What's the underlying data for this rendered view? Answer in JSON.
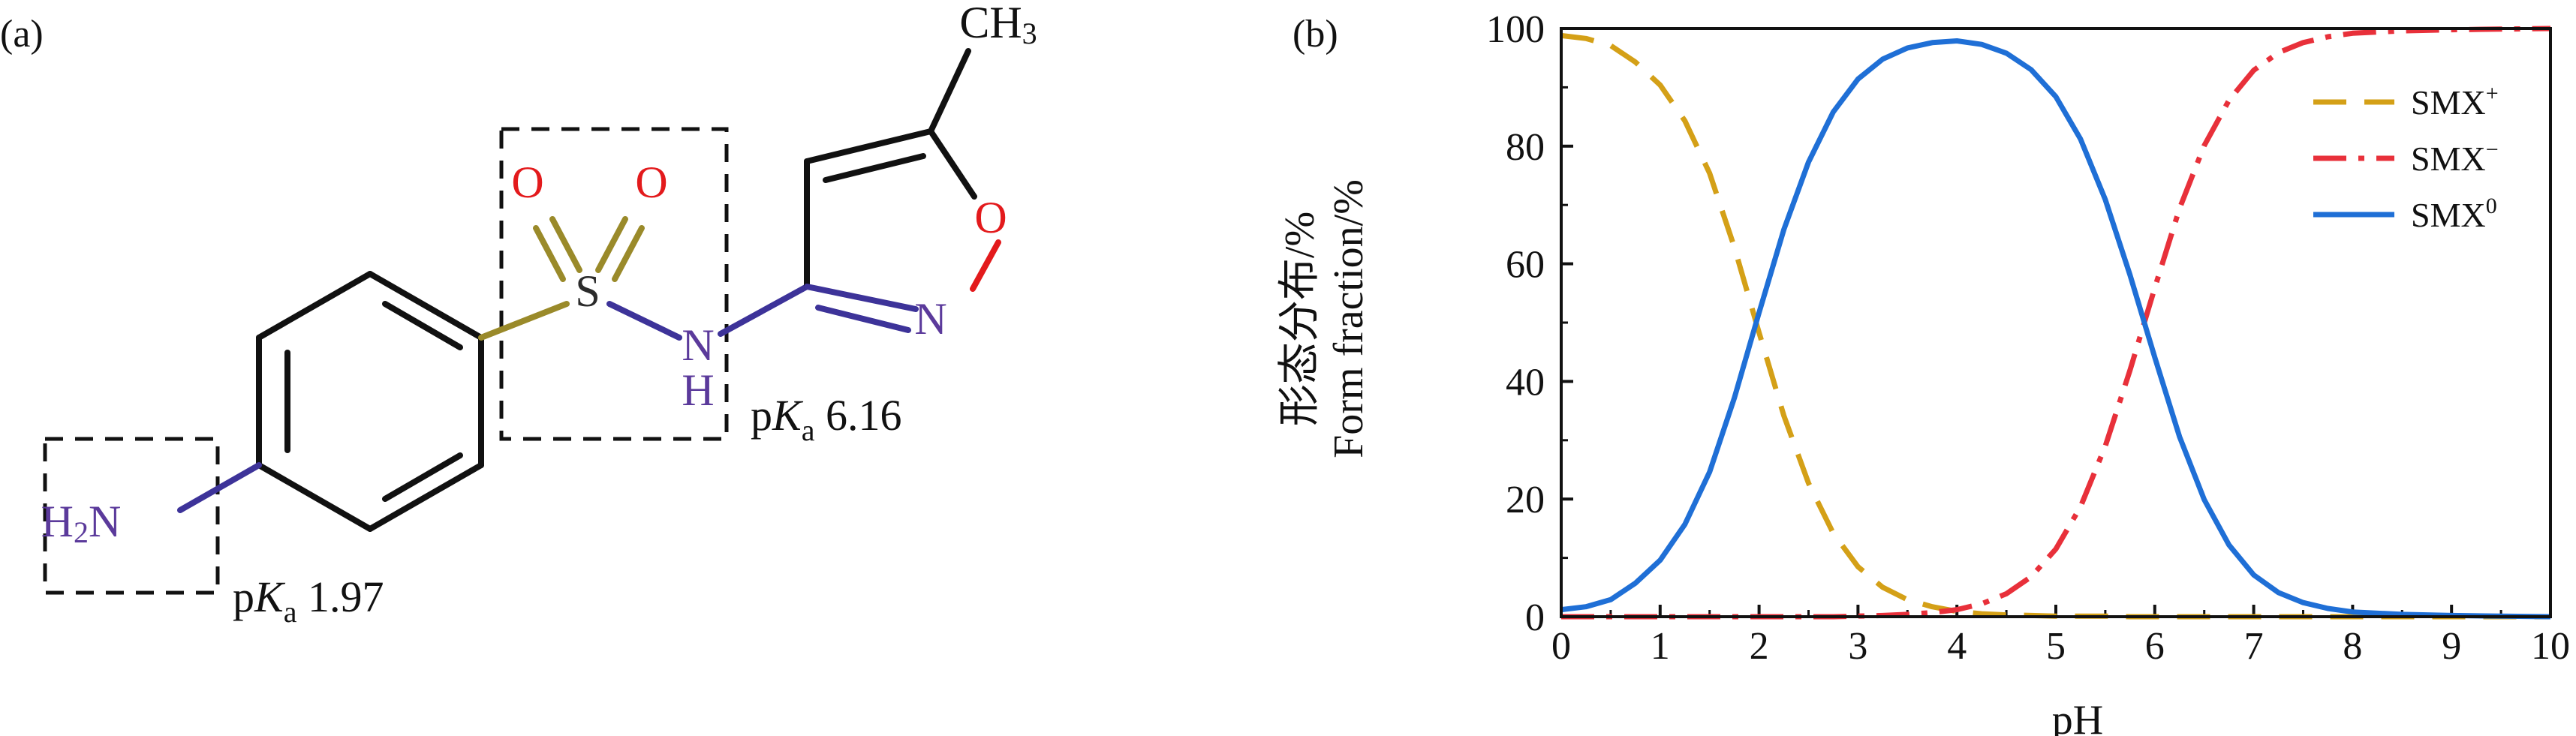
{
  "panel_a": {
    "label": "(a)",
    "pka_1": {
      "prefix": "p",
      "italic": "K",
      "sub": "a",
      "value": " 1.97"
    },
    "pka_2": {
      "prefix": "p",
      "italic": "K",
      "sub": "a",
      "value": " 6.16"
    },
    "atoms": {
      "amine": {
        "main": "H",
        "sub": "2",
        "tail": "N"
      },
      "sulfur": "S",
      "oxygen_1": "O",
      "oxygen_2": "O",
      "nh_n": "N",
      "nh_h": "H",
      "ring_n": "N",
      "ring_o": "O",
      "methyl": {
        "main": "CH",
        "sub": "3"
      }
    },
    "colors": {
      "oxygen": "#e31a1c",
      "nitrogen": "#5b3a9b",
      "bond": "#111111"
    }
  },
  "panel_b": {
    "label": "(b)",
    "ylabel_cn": "形态分布/%",
    "ylabel_en": "Form fraction/%",
    "xlabel": "pH"
  },
  "chart_data": {
    "type": "line",
    "xlabel": "pH",
    "ylabel": "形态分布/% Form fraction/%",
    "xlim": [
      0,
      10
    ],
    "ylim": [
      0,
      100
    ],
    "xticks": [
      0,
      1,
      2,
      3,
      4,
      5,
      6,
      7,
      8,
      9,
      10
    ],
    "yticks": [
      0,
      20,
      40,
      60,
      80,
      100
    ],
    "legend_position": "top-right",
    "grid": false,
    "x": [
      0,
      0.25,
      0.5,
      0.75,
      1,
      1.25,
      1.5,
      1.75,
      2,
      2.25,
      2.5,
      2.75,
      3,
      3.25,
      3.5,
      3.75,
      4,
      4.25,
      4.5,
      4.75,
      5,
      5.25,
      5.5,
      5.75,
      6,
      6.25,
      6.5,
      6.75,
      7,
      7.25,
      7.5,
      7.75,
      8,
      8.5,
      9,
      9.5,
      10
    ],
    "series": [
      {
        "name": "SMX⁺",
        "label_main": "SMX",
        "label_sup": "+",
        "color": "#d4a017",
        "dash": "dashed",
        "values": [
          98.8,
          98.3,
          97.1,
          94.3,
          90.4,
          84.3,
          75.4,
          62.8,
          48.3,
          34.2,
          22.7,
          14.2,
          8.5,
          5.0,
          2.9,
          1.7,
          0.9,
          0.5,
          0.3,
          0.2,
          0.1,
          0.1,
          0.1,
          0.0,
          0.0,
          0.0,
          0.0,
          0.0,
          0.0,
          0.0,
          0.0,
          0.0,
          0.0,
          0.0,
          0.0,
          0.0,
          0.0
        ]
      },
      {
        "name": "SMX⁻",
        "label_main": "SMX",
        "label_sup": "−",
        "color": "#e8303a",
        "dash": "dashdot",
        "values": [
          0.0,
          0.0,
          0.0,
          0.0,
          0.0,
          0.0,
          0.0,
          0.0,
          0.0,
          0.0,
          0.0,
          0.0,
          0.1,
          0.2,
          0.4,
          0.7,
          1.2,
          2.2,
          3.9,
          6.8,
          11.5,
          18.7,
          29.0,
          41.9,
          55.9,
          69.4,
          80.1,
          87.8,
          92.9,
          95.9,
          97.6,
          98.6,
          99.2,
          99.6,
          99.8,
          99.9,
          100.0
        ]
      },
      {
        "name": "SMX⁰",
        "label_main": "SMX",
        "label_sup": "0",
        "color": "#1f6fd6",
        "dash": "solid",
        "values": [
          1.2,
          1.7,
          2.9,
          5.7,
          9.6,
          15.7,
          24.6,
          37.2,
          51.7,
          65.8,
          77.3,
          85.8,
          91.4,
          94.8,
          96.7,
          97.6,
          97.9,
          97.3,
          95.8,
          93.0,
          88.4,
          81.2,
          70.9,
          58.1,
          44.1,
          30.6,
          19.9,
          12.2,
          7.1,
          4.1,
          2.4,
          1.4,
          0.8,
          0.4,
          0.2,
          0.1,
          0.0
        ]
      }
    ]
  }
}
